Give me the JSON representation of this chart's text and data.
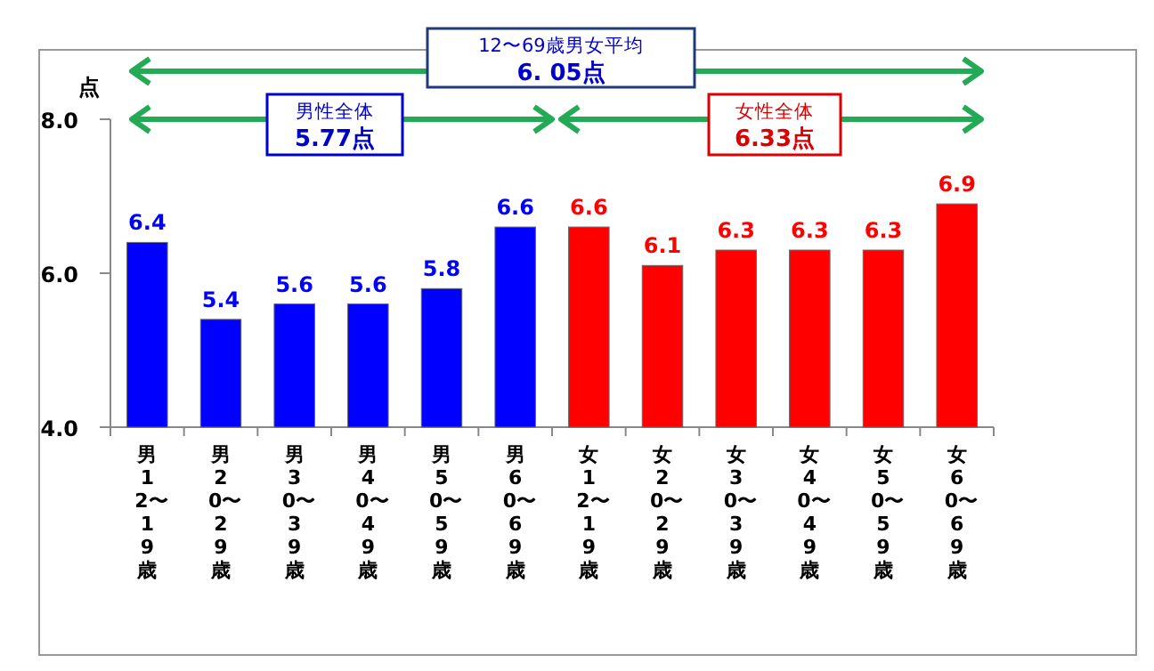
{
  "chart_data": {
    "type": "bar",
    "ylabel": "点",
    "categories": [
      "男 12〜19歳",
      "男 20〜29歳",
      "男 30〜39歳",
      "男 40〜49歳",
      "男 50〜59歳",
      "男 60〜69歳",
      "女 12〜19歳",
      "女 20〜29歳",
      "女 30〜39歳",
      "女 40〜49歳",
      "女 50〜59歳",
      "女 60〜69歳"
    ],
    "values": [
      6.4,
      5.4,
      5.6,
      5.6,
      5.8,
      6.6,
      6.6,
      6.1,
      6.3,
      6.3,
      6.3,
      6.9
    ],
    "colors": [
      "#0000ff",
      "#0000ff",
      "#0000ff",
      "#0000ff",
      "#0000ff",
      "#0000ff",
      "#ff0000",
      "#ff0000",
      "#ff0000",
      "#ff0000",
      "#ff0000",
      "#ff0000"
    ],
    "ylim": [
      4,
      8
    ],
    "yticks": [
      {
        "value": 4,
        "label": "4.0"
      },
      {
        "value": 6,
        "label": "6.0"
      },
      {
        "value": 8,
        "label": "8.0"
      }
    ],
    "data_labels": true,
    "annotations": [
      "12〜69歳男女平均",
      "6. 05点",
      "男性全体",
      "5.77点",
      "女性全体",
      "6.33点"
    ]
  }
}
